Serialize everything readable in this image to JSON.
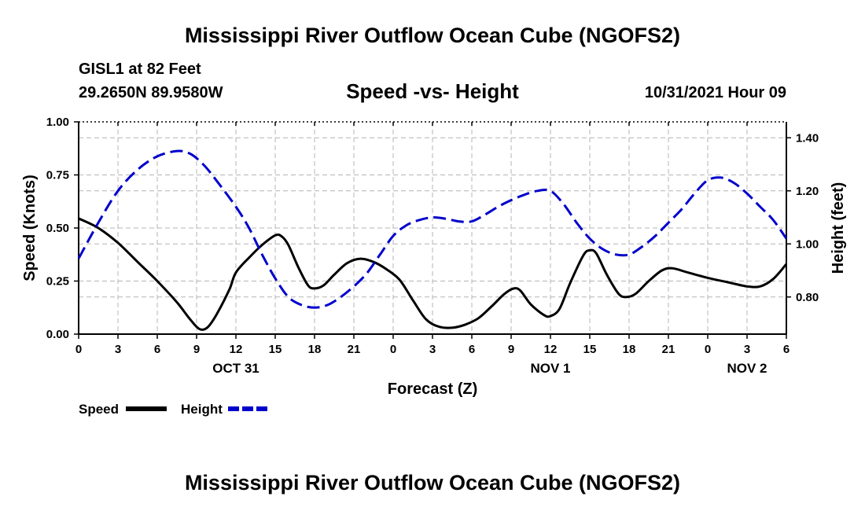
{
  "titles": {
    "main": "Mississippi River Outflow Ocean Cube (NGOFS2)",
    "bottom": "Mississippi River Outflow Ocean Cube (NGOFS2)",
    "station": "GISL1 at 82 Feet",
    "coords": "29.2650N  89.9580W",
    "subtitle": "Speed -vs- Height",
    "datetime": "10/31/2021 Hour 09"
  },
  "colors": {
    "speed": "#000000",
    "height": "#0000cc",
    "grid": "#b4b4b4"
  },
  "chart_data": {
    "type": "line",
    "title": "Speed -vs- Height",
    "xlabel": "Forecast (Z)",
    "ylabel": "Speed (Knots)",
    "y2label": "Height (feet)",
    "x_range_hours": [
      0,
      54
    ],
    "x_ticks": [
      {
        "h": 0,
        "label": "0"
      },
      {
        "h": 3,
        "label": "3"
      },
      {
        "h": 6,
        "label": "6"
      },
      {
        "h": 9,
        "label": "9"
      },
      {
        "h": 12,
        "label": "12"
      },
      {
        "h": 15,
        "label": "15"
      },
      {
        "h": 18,
        "label": "18"
      },
      {
        "h": 21,
        "label": "21"
      },
      {
        "h": 24,
        "label": "0"
      },
      {
        "h": 27,
        "label": "3"
      },
      {
        "h": 30,
        "label": "6"
      },
      {
        "h": 33,
        "label": "9"
      },
      {
        "h": 36,
        "label": "12"
      },
      {
        "h": 39,
        "label": "15"
      },
      {
        "h": 42,
        "label": "18"
      },
      {
        "h": 45,
        "label": "21"
      },
      {
        "h": 48,
        "label": "0"
      },
      {
        "h": 51,
        "label": "3"
      },
      {
        "h": 54,
        "label": "6"
      }
    ],
    "date_labels": [
      {
        "h": 12,
        "label": "OCT 31"
      },
      {
        "h": 36,
        "label": "NOV 1"
      },
      {
        "h": 51,
        "label": "NOV 2"
      }
    ],
    "y_left": {
      "range": [
        0,
        1.0
      ],
      "ticks": [
        0.0,
        0.25,
        0.5,
        0.75,
        1.0
      ],
      "tick_labels": [
        "0.00",
        "0.25",
        "0.50",
        "0.75",
        "1.00"
      ]
    },
    "y_right": {
      "range": [
        0.66,
        1.46
      ],
      "ticks": [
        0.8,
        1.0,
        1.2,
        1.4
      ],
      "tick_labels": [
        "0.80",
        "1.00",
        "1.20",
        "1.40"
      ]
    },
    "legend": [
      {
        "key": "speed",
        "label": "Speed"
      },
      {
        "key": "height",
        "label": "Height"
      }
    ],
    "series": [
      {
        "name": "Speed",
        "axis": "left",
        "style": "solid",
        "points": [
          [
            0,
            0.545
          ],
          [
            1.5,
            0.5
          ],
          [
            3,
            0.43
          ],
          [
            4.5,
            0.34
          ],
          [
            6,
            0.25
          ],
          [
            7.5,
            0.15
          ],
          [
            8.5,
            0.07
          ],
          [
            9.2,
            0.025
          ],
          [
            9.8,
            0.03
          ],
          [
            10.5,
            0.09
          ],
          [
            11.5,
            0.21
          ],
          [
            12,
            0.29
          ],
          [
            13,
            0.36
          ],
          [
            14,
            0.42
          ],
          [
            15,
            0.465
          ],
          [
            15.5,
            0.46
          ],
          [
            16,
            0.42
          ],
          [
            16.8,
            0.31
          ],
          [
            17.5,
            0.23
          ],
          [
            18,
            0.215
          ],
          [
            18.7,
            0.23
          ],
          [
            19.5,
            0.28
          ],
          [
            20.5,
            0.335
          ],
          [
            21.5,
            0.355
          ],
          [
            22.5,
            0.34
          ],
          [
            23.5,
            0.305
          ],
          [
            24.5,
            0.255
          ],
          [
            25.5,
            0.16
          ],
          [
            26.5,
            0.07
          ],
          [
            27.5,
            0.035
          ],
          [
            28.5,
            0.03
          ],
          [
            29.5,
            0.045
          ],
          [
            30.5,
            0.075
          ],
          [
            31.5,
            0.13
          ],
          [
            32.5,
            0.19
          ],
          [
            33.2,
            0.215
          ],
          [
            33.7,
            0.205
          ],
          [
            34.5,
            0.14
          ],
          [
            35.5,
            0.09
          ],
          [
            36,
            0.085
          ],
          [
            36.7,
            0.12
          ],
          [
            37.5,
            0.24
          ],
          [
            38.5,
            0.37
          ],
          [
            39,
            0.395
          ],
          [
            39.5,
            0.38
          ],
          [
            40.3,
            0.28
          ],
          [
            41.2,
            0.19
          ],
          [
            41.8,
            0.175
          ],
          [
            42.5,
            0.19
          ],
          [
            43.5,
            0.25
          ],
          [
            44.5,
            0.3
          ],
          [
            45.3,
            0.31
          ],
          [
            46.5,
            0.29
          ],
          [
            48,
            0.265
          ],
          [
            49.5,
            0.245
          ],
          [
            51,
            0.225
          ],
          [
            52,
            0.225
          ],
          [
            53,
            0.26
          ],
          [
            54,
            0.33
          ]
        ]
      },
      {
        "name": "Height",
        "axis": "right",
        "style": "dashed",
        "points": [
          [
            0,
            0.945
          ],
          [
            1.5,
            1.08
          ],
          [
            3,
            1.2
          ],
          [
            4.5,
            1.28
          ],
          [
            6,
            1.33
          ],
          [
            7.5,
            1.35
          ],
          [
            8.5,
            1.34
          ],
          [
            9.5,
            1.3
          ],
          [
            10.5,
            1.24
          ],
          [
            12,
            1.14
          ],
          [
            13,
            1.06
          ],
          [
            14,
            0.96
          ],
          [
            15,
            0.87
          ],
          [
            16,
            0.8
          ],
          [
            17,
            0.77
          ],
          [
            18,
            0.76
          ],
          [
            19,
            0.77
          ],
          [
            20,
            0.8
          ],
          [
            21,
            0.84
          ],
          [
            22,
            0.89
          ],
          [
            23,
            0.96
          ],
          [
            24,
            1.03
          ],
          [
            25,
            1.07
          ],
          [
            26,
            1.09
          ],
          [
            27,
            1.1
          ],
          [
            28,
            1.095
          ],
          [
            29,
            1.085
          ],
          [
            30,
            1.085
          ],
          [
            31,
            1.11
          ],
          [
            32,
            1.14
          ],
          [
            33,
            1.165
          ],
          [
            34,
            1.185
          ],
          [
            35,
            1.2
          ],
          [
            36,
            1.2
          ],
          [
            37,
            1.15
          ],
          [
            38,
            1.08
          ],
          [
            39,
            1.02
          ],
          [
            40,
            0.98
          ],
          [
            41,
            0.96
          ],
          [
            42,
            0.96
          ],
          [
            43,
            0.99
          ],
          [
            44,
            1.03
          ],
          [
            45,
            1.08
          ],
          [
            46,
            1.13
          ],
          [
            47,
            1.19
          ],
          [
            48,
            1.24
          ],
          [
            49,
            1.25
          ],
          [
            50,
            1.23
          ],
          [
            51,
            1.19
          ],
          [
            52,
            1.14
          ],
          [
            53,
            1.09
          ],
          [
            54,
            1.02
          ]
        ]
      }
    ]
  }
}
